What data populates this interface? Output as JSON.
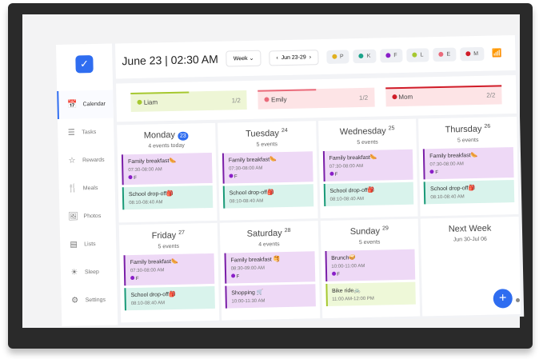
{
  "header": {
    "date": "June 23",
    "time": "02:30 AM",
    "view": "Week",
    "range": "Jun 23-29"
  },
  "members": [
    {
      "initial": "P",
      "color": "#e0b020"
    },
    {
      "initial": "K",
      "color": "#1aa38a"
    },
    {
      "initial": "F",
      "color": "#8a1fc8"
    },
    {
      "initial": "L",
      "color": "#a6c830"
    },
    {
      "initial": "E",
      "color": "#ea6a7a"
    },
    {
      "initial": "M",
      "color": "#d01c28"
    }
  ],
  "sidebar": [
    "Calendar",
    "Tasks",
    "Rewards",
    "Meals",
    "Photos",
    "Lists",
    "Sleep",
    "Settings"
  ],
  "sidebar_icons": [
    "📅",
    "☰",
    "☆",
    "🍴",
    "🖼",
    "▤",
    "☀",
    "⚙"
  ],
  "progress": [
    {
      "name": "Liam",
      "count": "1/2",
      "color": "#a6c830",
      "bg": "#eef6d6",
      "fill": 0.5
    },
    {
      "name": "Emily",
      "count": "1/2",
      "color": "#ea6a7a",
      "bg": "#fde4e6",
      "fill": 0.5
    },
    {
      "name": "Mom",
      "count": "2/2",
      "color": "#d01c28",
      "bg": "#fde4e6",
      "fill": 1
    }
  ],
  "days": [
    {
      "name": "Monday",
      "num": "23",
      "today": true,
      "count": "4 events today",
      "events": [
        {
          "title": "Family breakfast🌭",
          "time": "07:30-08:00 AM",
          "who": "F",
          "type": "p"
        },
        {
          "title": "School drop-off🎒",
          "time": "08:10-08:40 AM",
          "type": "g"
        }
      ]
    },
    {
      "name": "Tuesday",
      "num": "24",
      "count": "5 events",
      "events": [
        {
          "title": "Family breakfast🌭",
          "time": "07:30-08:00 AM",
          "who": "F",
          "type": "p"
        },
        {
          "title": "School drop-off🎒",
          "time": "08:10-08:40 AM",
          "type": "g"
        }
      ]
    },
    {
      "name": "Wednesday",
      "num": "25",
      "count": "5 events",
      "events": [
        {
          "title": "Family breakfast🌭",
          "time": "07:30-08:00 AM",
          "who": "F",
          "type": "p"
        },
        {
          "title": "School drop-off🎒",
          "time": "08:10-08:40 AM",
          "type": "g"
        }
      ]
    },
    {
      "name": "Thursday",
      "num": "26",
      "count": "5 events",
      "events": [
        {
          "title": "Family breakfast🌭",
          "time": "07:30-08:00 AM",
          "who": "F",
          "type": "p"
        },
        {
          "title": "School drop-off🎒",
          "time": "08:10-08:40 AM",
          "type": "g"
        }
      ]
    },
    {
      "name": "Friday",
      "num": "27",
      "count": "5 events",
      "events": [
        {
          "title": "Family breakfast🌭",
          "time": "07:30-08:00 AM",
          "who": "F",
          "type": "p"
        },
        {
          "title": "School drop-off🎒",
          "time": "08:10-08:40 AM",
          "type": "g"
        }
      ]
    },
    {
      "name": "Saturday",
      "num": "28",
      "count": "4 events",
      "events": [
        {
          "title": "Family breakfast 🥞",
          "time": "08:30-09:00 AM",
          "who": "F",
          "type": "p"
        },
        {
          "title": "Shopping 🛒",
          "time": "10:00-11:30 AM",
          "type": "p"
        }
      ]
    },
    {
      "name": "Sunday",
      "num": "29",
      "count": "5 events",
      "events": [
        {
          "title": "Brunch🥪",
          "time": "10:00-11:00 AM",
          "who": "F",
          "type": "p"
        },
        {
          "title": "Bike ride🚲",
          "time": "11:00 AM-12:00 PM",
          "type": "l"
        }
      ]
    }
  ],
  "next_week": {
    "title": "Next Week",
    "range": "Jun 30-Jul 06"
  },
  "add_label": "+"
}
